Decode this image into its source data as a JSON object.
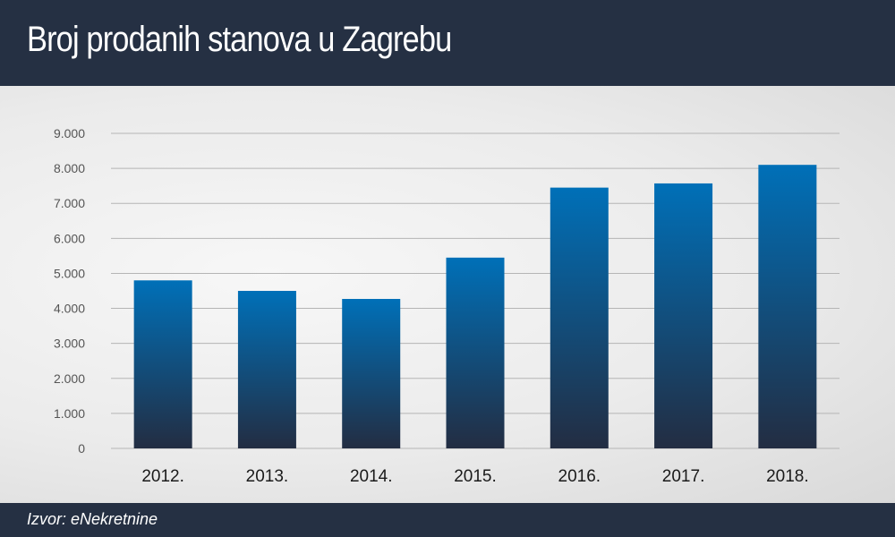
{
  "header": {
    "title": "Broj prodanih stanova u Zagrebu"
  },
  "footer": {
    "source": "Izvor: eNekretnine"
  },
  "colors": {
    "header_bg": "#253043",
    "bar_top": "#0070b8",
    "bar_bottom": "#232d42",
    "gridline": "#b5b5b5",
    "tick_text": "#555555",
    "category_text": "#1a1a1a"
  },
  "chart_data": {
    "type": "bar",
    "title": "Broj prodanih stanova u Zagrebu",
    "xlabel": "",
    "ylabel": "",
    "categories": [
      "2012.",
      "2013.",
      "2014.",
      "2015.",
      "2016.",
      "2017.",
      "2018."
    ],
    "values": [
      4800,
      4500,
      4270,
      5450,
      7450,
      7570,
      8100
    ],
    "ylim": [
      0,
      9000
    ],
    "yticks": [
      0,
      1000,
      2000,
      3000,
      4000,
      5000,
      6000,
      7000,
      8000,
      9000
    ],
    "ytick_labels": [
      "0",
      "1.000",
      "2.000",
      "3.000",
      "4.000",
      "5.000",
      "6.000",
      "7.000",
      "8.000",
      "9.000"
    ],
    "grid": true,
    "legend": "none"
  }
}
